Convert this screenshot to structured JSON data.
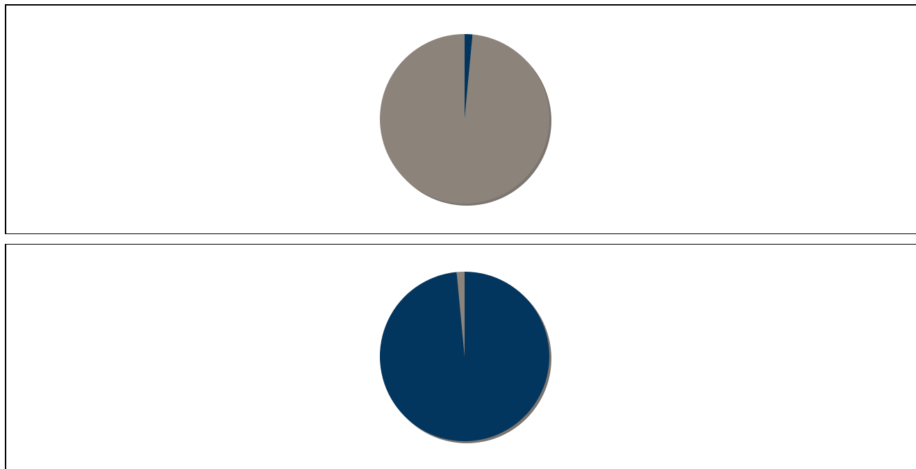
{
  "colors": {
    "navy": "#03365F",
    "taupe": "#8C837B",
    "shadow": "#7B7570",
    "border": "#000000"
  },
  "chart_data": [
    {
      "type": "pie",
      "slices": [
        {
          "value": 1.5,
          "color": "#03365F"
        },
        {
          "value": 98.5,
          "color": "#8C837B"
        }
      ]
    },
    {
      "type": "pie",
      "slices": [
        {
          "value": 98.5,
          "color": "#03365F"
        },
        {
          "value": 1.5,
          "color": "#8C837B"
        }
      ]
    }
  ]
}
